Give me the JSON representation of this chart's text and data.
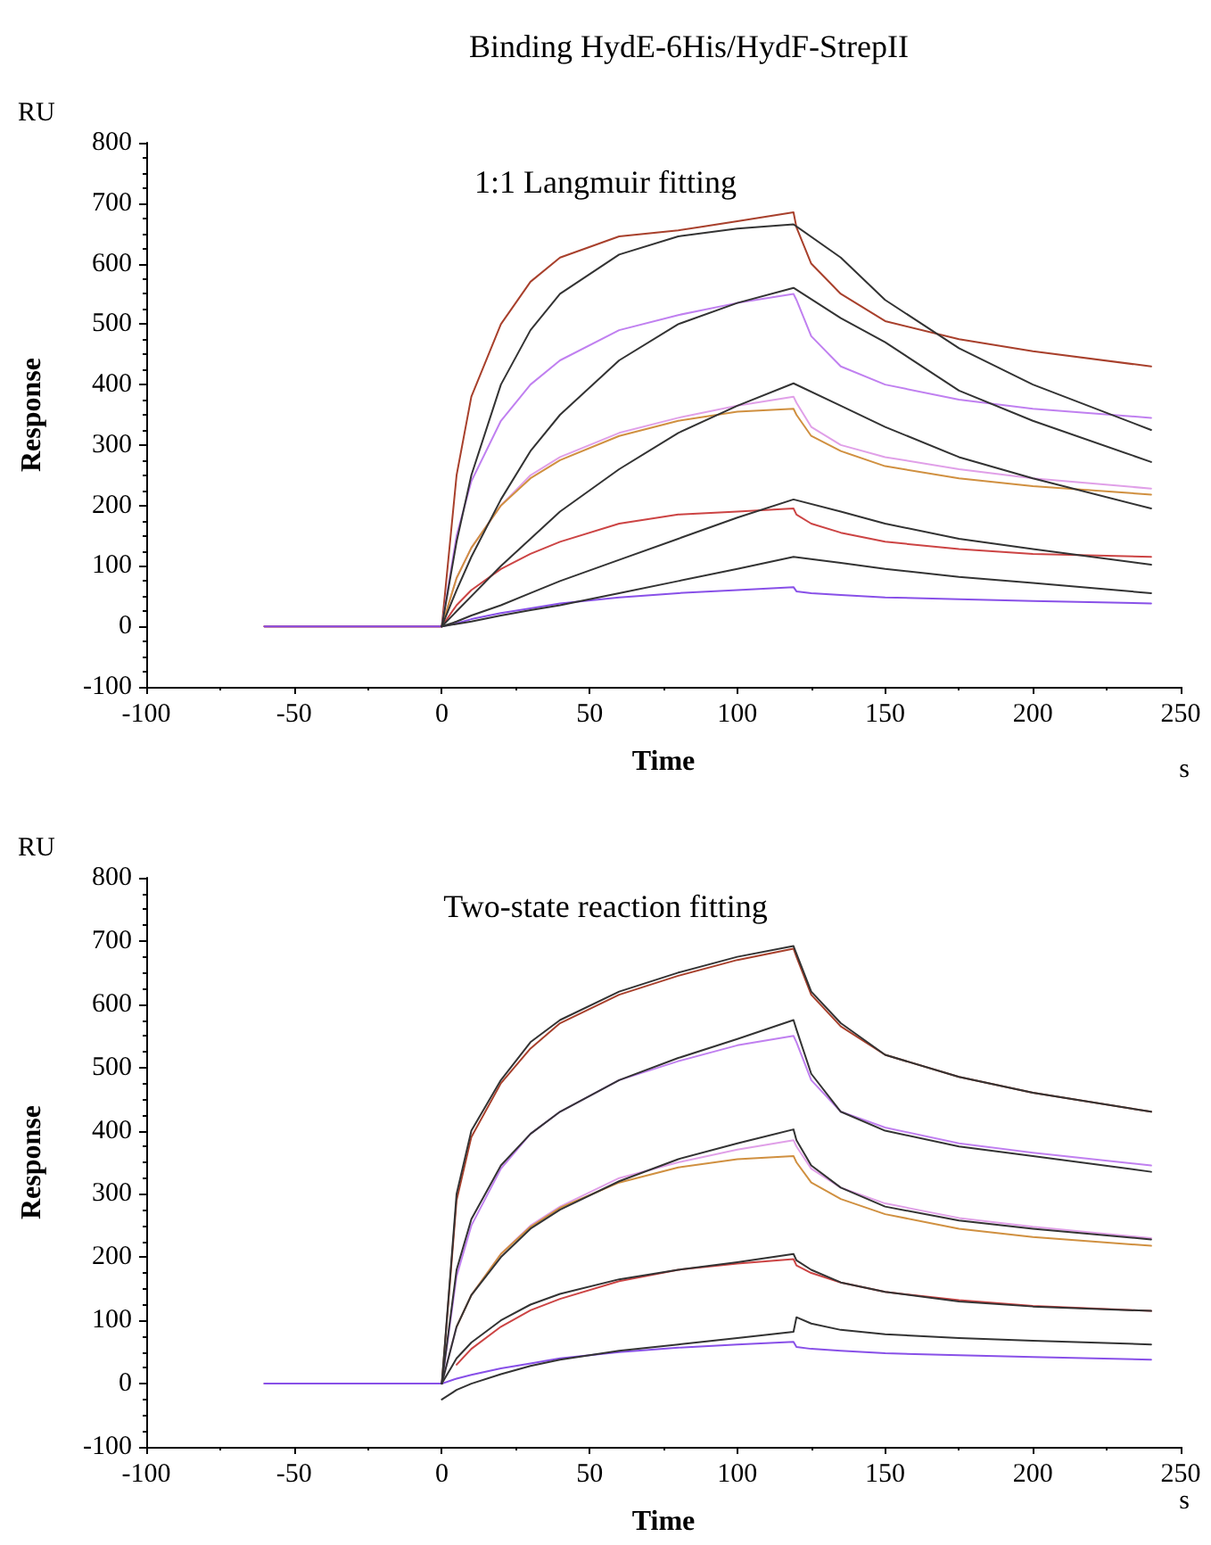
{
  "chart_data": [
    {
      "type": "line",
      "title": "Binding HydE-6His/HydF-StrepII",
      "subtitle": "1:1 Langmuir fitting",
      "xlabel": "Time",
      "ylabel": "Response",
      "annotations": [
        "RU",
        "s"
      ],
      "xlim": [
        -100,
        250
      ],
      "xticks": [
        -100,
        -50,
        0,
        50,
        100,
        150,
        200,
        250
      ],
      "ylim": [
        -100,
        800
      ],
      "yticks": [
        -100,
        0,
        100,
        200,
        300,
        400,
        500,
        600,
        700,
        800
      ],
      "grid": false,
      "marker": "none",
      "line_style": "solid",
      "series": [
        {
          "color": "#a8402c",
          "x": [
            -60,
            0,
            5,
            10,
            20,
            30,
            40,
            60,
            80,
            100,
            119,
            120,
            125,
            135,
            150,
            175,
            200,
            240
          ],
          "values": [
            0,
            0,
            250,
            380,
            500,
            570,
            610,
            645,
            655,
            670,
            685,
            660,
            600,
            550,
            505,
            475,
            455,
            430
          ]
        },
        {
          "color": "#c080f0",
          "x": [
            -60,
            0,
            5,
            10,
            20,
            30,
            40,
            60,
            80,
            100,
            119,
            120,
            125,
            135,
            150,
            175,
            200,
            240
          ],
          "values": [
            0,
            0,
            150,
            240,
            340,
            400,
            440,
            490,
            515,
            535,
            550,
            540,
            480,
            430,
            400,
            375,
            360,
            345
          ]
        },
        {
          "color": "#e0a0e8",
          "x": [
            -60,
            0,
            5,
            10,
            20,
            30,
            40,
            60,
            80,
            100,
            119,
            120,
            125,
            135,
            150,
            175,
            200,
            240
          ],
          "values": [
            0,
            0,
            80,
            130,
            200,
            250,
            280,
            320,
            345,
            365,
            380,
            370,
            330,
            300,
            280,
            260,
            245,
            228
          ]
        },
        {
          "color": "#d09040",
          "x": [
            -60,
            0,
            5,
            10,
            20,
            30,
            40,
            60,
            80,
            100,
            119,
            120,
            125,
            135,
            150,
            175,
            200,
            240
          ],
          "values": [
            0,
            0,
            80,
            130,
            200,
            245,
            275,
            315,
            340,
            355,
            360,
            350,
            315,
            290,
            265,
            245,
            232,
            218
          ]
        },
        {
          "color": "#cc4444",
          "x": [
            -60,
            0,
            5,
            10,
            20,
            30,
            40,
            60,
            80,
            100,
            119,
            120,
            125,
            135,
            150,
            175,
            200,
            240
          ],
          "values": [
            0,
            0,
            35,
            60,
            95,
            120,
            140,
            170,
            185,
            190,
            195,
            185,
            170,
            155,
            140,
            128,
            120,
            115
          ]
        },
        {
          "color": "#8850e8",
          "x": [
            -60,
            0,
            5,
            10,
            20,
            30,
            40,
            60,
            80,
            100,
            119,
            120,
            125,
            135,
            150,
            175,
            200,
            240
          ],
          "values": [
            0,
            0,
            5,
            12,
            22,
            30,
            38,
            48,
            55,
            60,
            65,
            58,
            55,
            52,
            48,
            45,
            42,
            38
          ]
        },
        {
          "color": "#333333",
          "x": [
            0,
            5,
            10,
            20,
            30,
            40,
            60,
            80,
            100,
            119,
            135,
            150,
            175,
            200,
            240
          ],
          "values": [
            0,
            140,
            250,
            400,
            490,
            550,
            615,
            645,
            658,
            665,
            610,
            540,
            460,
            400,
            325
          ]
        },
        {
          "color": "#333333",
          "x": [
            0,
            5,
            10,
            20,
            30,
            40,
            60,
            80,
            100,
            119,
            135,
            150,
            175,
            200,
            240
          ],
          "values": [
            0,
            60,
            115,
            210,
            290,
            350,
            440,
            500,
            535,
            560,
            510,
            470,
            390,
            340,
            272
          ]
        },
        {
          "color": "#333333",
          "x": [
            0,
            5,
            10,
            20,
            30,
            40,
            60,
            80,
            100,
            119,
            135,
            150,
            175,
            200,
            240
          ],
          "values": [
            0,
            25,
            50,
            100,
            145,
            190,
            260,
            320,
            365,
            402,
            365,
            330,
            280,
            245,
            195
          ]
        },
        {
          "color": "#333333",
          "x": [
            0,
            5,
            10,
            20,
            30,
            40,
            60,
            80,
            100,
            119,
            135,
            150,
            175,
            200,
            240
          ],
          "values": [
            0,
            8,
            18,
            35,
            55,
            75,
            110,
            145,
            180,
            210,
            190,
            170,
            145,
            128,
            102
          ]
        },
        {
          "color": "#333333",
          "x": [
            0,
            5,
            10,
            20,
            30,
            40,
            60,
            80,
            100,
            119,
            135,
            150,
            175,
            200,
            240
          ],
          "values": [
            0,
            4,
            8,
            18,
            27,
            35,
            55,
            75,
            95,
            115,
            105,
            95,
            82,
            72,
            55
          ]
        }
      ]
    },
    {
      "type": "line",
      "title": "Two-state reaction fitting",
      "xlabel": "Time",
      "ylabel": "Response",
      "annotations": [
        "RU",
        "s"
      ],
      "xlim": [
        -100,
        250
      ],
      "xticks": [
        -100,
        -50,
        0,
        50,
        100,
        150,
        200,
        250
      ],
      "ylim": [
        -100,
        800
      ],
      "yticks": [
        -100,
        0,
        100,
        200,
        300,
        400,
        500,
        600,
        700,
        800
      ],
      "grid": false,
      "marker": "none",
      "line_style": "solid",
      "series": [
        {
          "color": "#a8402c",
          "x": [
            -60,
            0,
            5,
            10,
            20,
            30,
            40,
            60,
            80,
            100,
            119,
            120,
            125,
            135,
            150,
            175,
            200,
            240
          ],
          "values": [
            0,
            0,
            290,
            390,
            475,
            530,
            570,
            615,
            645,
            670,
            688,
            675,
            615,
            565,
            520,
            485,
            460,
            430
          ]
        },
        {
          "color": "#c080f0",
          "x": [
            -60,
            0,
            5,
            10,
            20,
            30,
            40,
            60,
            80,
            100,
            119,
            120,
            125,
            135,
            150,
            175,
            200,
            240
          ],
          "values": [
            0,
            0,
            170,
            250,
            340,
            395,
            430,
            480,
            510,
            535,
            550,
            540,
            480,
            430,
            405,
            380,
            365,
            345
          ]
        },
        {
          "color": "#e0a0e8",
          "x": [
            -60,
            0,
            5,
            10,
            20,
            30,
            40,
            60,
            80,
            100,
            119,
            120,
            125,
            135,
            150,
            175,
            200,
            240
          ],
          "values": [
            0,
            0,
            90,
            140,
            205,
            250,
            280,
            325,
            350,
            370,
            385,
            375,
            340,
            310,
            285,
            262,
            248,
            230
          ]
        },
        {
          "color": "#d09040",
          "x": [
            5,
            10,
            20,
            30,
            40,
            60,
            80,
            100,
            119,
            120,
            125,
            135,
            150,
            175,
            200,
            240
          ],
          "values": [
            90,
            140,
            205,
            248,
            278,
            318,
            342,
            355,
            360,
            350,
            318,
            292,
            268,
            245,
            232,
            218
          ]
        },
        {
          "color": "#cc4444",
          "x": [
            5,
            10,
            20,
            30,
            40,
            60,
            80,
            100,
            119,
            120,
            125,
            135,
            150,
            175,
            200,
            240
          ],
          "values": [
            30,
            55,
            90,
            116,
            134,
            162,
            180,
            190,
            197,
            187,
            175,
            160,
            145,
            132,
            123,
            115
          ]
        },
        {
          "color": "#8850e8",
          "x": [
            -60,
            0,
            5,
            10,
            20,
            30,
            40,
            60,
            80,
            100,
            119,
            120,
            125,
            135,
            150,
            175,
            200,
            240
          ],
          "values": [
            0,
            0,
            8,
            14,
            24,
            32,
            40,
            50,
            57,
            62,
            66,
            58,
            55,
            52,
            48,
            45,
            42,
            38
          ]
        },
        {
          "color": "#333333",
          "x": [
            0,
            5,
            10,
            20,
            30,
            40,
            60,
            80,
            100,
            119,
            120,
            125,
            135,
            150,
            175,
            200,
            240
          ],
          "values": [
            0,
            300,
            400,
            480,
            540,
            575,
            620,
            650,
            675,
            692,
            680,
            620,
            570,
            520,
            485,
            460,
            430
          ]
        },
        {
          "color": "#333333",
          "x": [
            0,
            5,
            10,
            20,
            30,
            40,
            60,
            80,
            100,
            119,
            120,
            125,
            135,
            150,
            175,
            200,
            240
          ],
          "values": [
            0,
            180,
            260,
            345,
            395,
            430,
            480,
            515,
            545,
            575,
            560,
            490,
            430,
            400,
            375,
            360,
            335
          ]
        },
        {
          "color": "#333333",
          "x": [
            0,
            5,
            10,
            20,
            30,
            40,
            60,
            80,
            100,
            119,
            120,
            125,
            135,
            150,
            175,
            200,
            240
          ],
          "values": [
            0,
            90,
            140,
            200,
            245,
            275,
            320,
            355,
            380,
            402,
            385,
            345,
            310,
            280,
            258,
            245,
            228
          ]
        },
        {
          "color": "#333333",
          "x": [
            0,
            5,
            10,
            20,
            30,
            40,
            60,
            80,
            100,
            119,
            120,
            125,
            135,
            150,
            175,
            200,
            240
          ],
          "values": [
            0,
            40,
            65,
            100,
            125,
            142,
            165,
            180,
            192,
            205,
            195,
            180,
            160,
            145,
            130,
            122,
            115
          ]
        },
        {
          "color": "#333333",
          "x": [
            0,
            5,
            10,
            20,
            30,
            40,
            60,
            80,
            100,
            119,
            120,
            125,
            135,
            150,
            175,
            200,
            240
          ],
          "values": [
            -25,
            -10,
            0,
            15,
            28,
            38,
            52,
            62,
            72,
            82,
            105,
            95,
            85,
            78,
            72,
            68,
            62
          ]
        }
      ]
    }
  ]
}
